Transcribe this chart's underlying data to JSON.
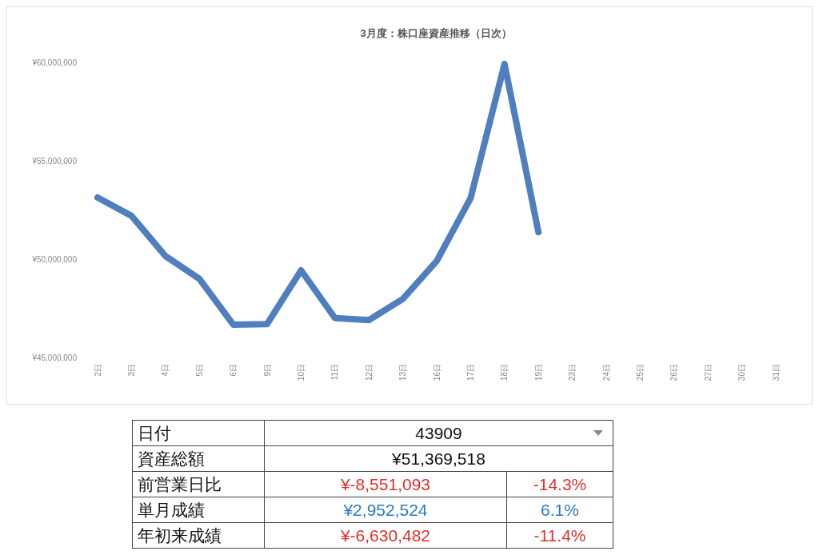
{
  "chart_data": [
    {
      "type": "line",
      "title": "3月度：株口座資産推移（日次）",
      "categories": [
        "2日",
        "3日",
        "4日",
        "5日",
        "6日",
        "9日",
        "10日",
        "11日",
        "12日",
        "13日",
        "16日",
        "17日",
        "18日",
        "19日",
        "23日",
        "24日",
        "25日",
        "26日",
        "27日",
        "30日",
        "31日"
      ],
      "series": [
        {
          "color": "#4f7fbf",
          "values": [
            53130000,
            52200000,
            50160000,
            49000000,
            46670000,
            46700000,
            49430000,
            47000000,
            46900000,
            47970000,
            49900000,
            53100000,
            59920000,
            51370000,
            null,
            null,
            null,
            null,
            null,
            null,
            null
          ]
        }
      ],
      "ylim": [
        45000000,
        60000000
      ],
      "yticks": [
        {
          "value": 45000000,
          "label": "¥45,000,000"
        },
        {
          "value": 50000000,
          "label": "¥50,000,000"
        },
        {
          "value": 55000000,
          "label": "¥55,000,000"
        },
        {
          "value": 60000000,
          "label": "¥60,000,000"
        }
      ],
      "grid": false,
      "line_style": "solid"
    },
    {
      "type": "other",
      "annotations": [
        "日付",
        "43909",
        "資産総額",
        "¥51,369,518",
        "前営業日比",
        "¥-8,551,093",
        "-14.3%",
        "単月成績",
        "¥2,952,524",
        "6.1%",
        "年初来成績",
        "¥-6,630,482",
        "-11.4%"
      ]
    }
  ]
}
